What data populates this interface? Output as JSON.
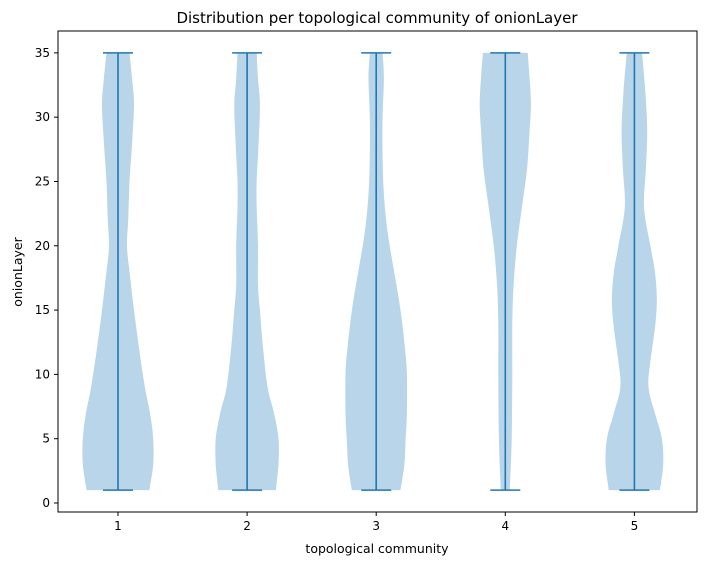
{
  "chart_data": {
    "type": "violin",
    "title": "Distribution per topological community of onionLayer",
    "xlabel": "topological community",
    "ylabel": "onionLayer",
    "categories": [
      "1",
      "2",
      "3",
      "4",
      "5"
    ],
    "ylim": [
      -0.7,
      36.7
    ],
    "yticks": [
      0,
      5,
      10,
      15,
      20,
      25,
      30,
      35
    ],
    "grid": false,
    "colors": {
      "body": "#b9d5e9",
      "line": "#1f77b4"
    },
    "violins": [
      {
        "category": "1",
        "min": 1,
        "max": 35,
        "profile": [
          [
            1,
            0.49
          ],
          [
            3,
            0.55
          ],
          [
            5,
            0.55
          ],
          [
            7,
            0.5
          ],
          [
            9,
            0.42
          ],
          [
            12,
            0.33
          ],
          [
            15,
            0.25
          ],
          [
            18,
            0.18
          ],
          [
            20,
            0.14
          ],
          [
            22,
            0.16
          ],
          [
            25,
            0.18
          ],
          [
            28,
            0.22
          ],
          [
            31,
            0.25
          ],
          [
            33,
            0.22
          ],
          [
            35,
            0.18
          ]
        ]
      },
      {
        "category": "2",
        "min": 1,
        "max": 35,
        "profile": [
          [
            1,
            0.45
          ],
          [
            3,
            0.49
          ],
          [
            5,
            0.49
          ],
          [
            7,
            0.42
          ],
          [
            9,
            0.32
          ],
          [
            12,
            0.25
          ],
          [
            15,
            0.2
          ],
          [
            17,
            0.17
          ],
          [
            20,
            0.17
          ],
          [
            23,
            0.15
          ],
          [
            25,
            0.15
          ],
          [
            28,
            0.18
          ],
          [
            31,
            0.2
          ],
          [
            33,
            0.17
          ],
          [
            35,
            0.15
          ]
        ]
      },
      {
        "category": "3",
        "min": 1,
        "max": 35,
        "profile": [
          [
            1,
            0.38
          ],
          [
            3,
            0.44
          ],
          [
            5,
            0.46
          ],
          [
            7,
            0.48
          ],
          [
            10,
            0.48
          ],
          [
            12,
            0.45
          ],
          [
            15,
            0.38
          ],
          [
            18,
            0.28
          ],
          [
            21,
            0.18
          ],
          [
            24,
            0.12
          ],
          [
            27,
            0.1
          ],
          [
            30,
            0.1
          ],
          [
            33,
            0.12
          ],
          [
            35,
            0.1
          ]
        ]
      },
      {
        "category": "4",
        "min": 1,
        "max": 35,
        "profile": [
          [
            1,
            0.07
          ],
          [
            5,
            0.1
          ],
          [
            10,
            0.11
          ],
          [
            14,
            0.11
          ],
          [
            17,
            0.13
          ],
          [
            20,
            0.18
          ],
          [
            23,
            0.26
          ],
          [
            26,
            0.34
          ],
          [
            29,
            0.38
          ],
          [
            31,
            0.4
          ],
          [
            33,
            0.38
          ],
          [
            35,
            0.35
          ]
        ]
      },
      {
        "category": "5",
        "min": 1,
        "max": 35,
        "profile": [
          [
            1,
            0.4
          ],
          [
            3,
            0.45
          ],
          [
            5,
            0.43
          ],
          [
            7,
            0.32
          ],
          [
            9,
            0.22
          ],
          [
            11,
            0.25
          ],
          [
            14,
            0.33
          ],
          [
            16,
            0.35
          ],
          [
            18,
            0.32
          ],
          [
            20,
            0.25
          ],
          [
            23,
            0.15
          ],
          [
            26,
            0.18
          ],
          [
            29,
            0.2
          ],
          [
            32,
            0.17
          ],
          [
            35,
            0.12
          ]
        ]
      }
    ]
  }
}
